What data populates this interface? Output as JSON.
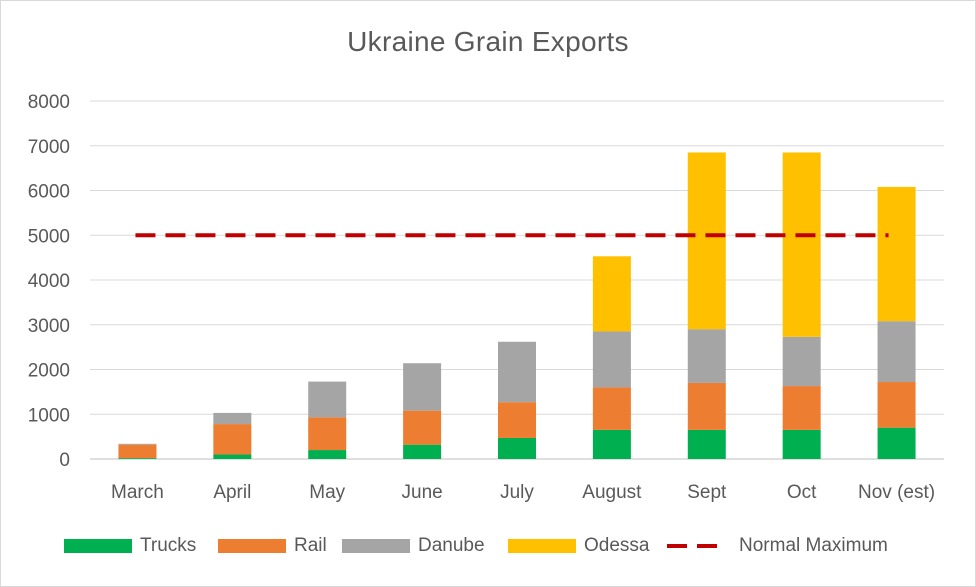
{
  "chart_data": {
    "type": "bar",
    "stacked": true,
    "title": "Ukraine Grain Exports",
    "categories": [
      "March",
      "April",
      "May",
      "June",
      "July",
      "August",
      "Sept",
      "Oct",
      "Nov (est)"
    ],
    "series": [
      {
        "name": "Trucks",
        "color": "#00b050",
        "values": [
          20,
          100,
          200,
          320,
          470,
          650,
          650,
          650,
          700
        ]
      },
      {
        "name": "Rail",
        "color": "#ed7d31",
        "values": [
          300,
          680,
          730,
          760,
          800,
          950,
          1050,
          980,
          1020
        ]
      },
      {
        "name": "Danube",
        "color": "#a5a5a5",
        "values": [
          20,
          250,
          800,
          1060,
          1350,
          1250,
          1200,
          1100,
          1360
        ]
      },
      {
        "name": "Odessa",
        "color": "#ffc000",
        "values": [
          0,
          0,
          0,
          0,
          0,
          1680,
          3950,
          4120,
          3000
        ]
      }
    ],
    "reference_line": {
      "name": "Normal Maximum",
      "value": 5000,
      "color": "#c00000",
      "style": "dashed"
    },
    "ylim": [
      0,
      8000
    ],
    "yticks": [
      "0",
      "1000",
      "2000",
      "3000",
      "4000",
      "5000",
      "6000",
      "7000",
      "8000"
    ],
    "grid": true,
    "legend_position": "bottom"
  }
}
